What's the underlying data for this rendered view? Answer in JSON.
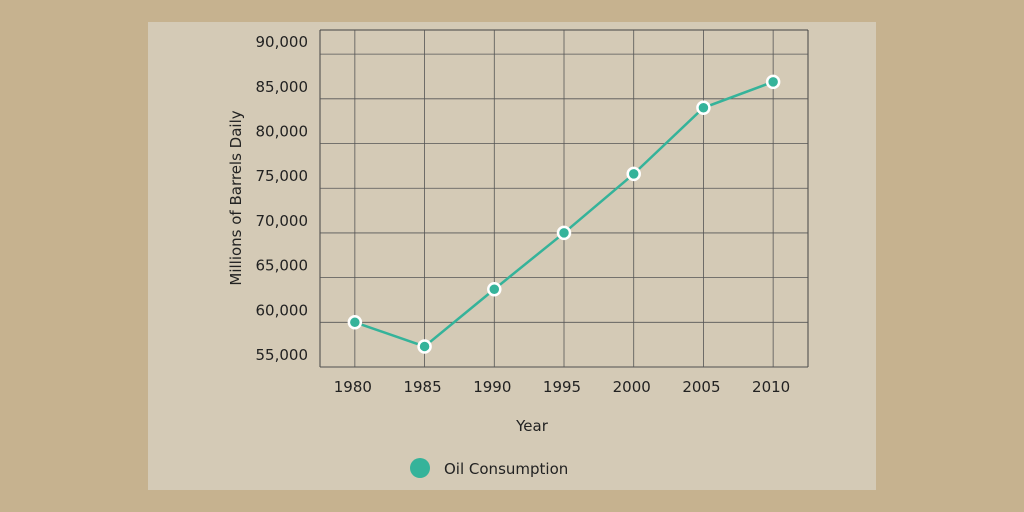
{
  "chart_data": {
    "type": "line",
    "x_label": "Year",
    "y_label": "Millions of Barrels Daily",
    "x": [
      1980,
      1985,
      1990,
      1995,
      2000,
      2005,
      2010
    ],
    "xlim": [
      1977.5,
      2012.5
    ],
    "xticks": [
      1980,
      1985,
      1990,
      1995,
      2000,
      2005,
      2010
    ],
    "ylim": [
      55000,
      92700
    ],
    "yticks": [
      {
        "value": 55000,
        "label": "55,000"
      },
      {
        "value": 60000,
        "label": "60,000"
      },
      {
        "value": 65000,
        "label": "65,000"
      },
      {
        "value": 70000,
        "label": "70,000"
      },
      {
        "value": 75000,
        "label": "75,000"
      },
      {
        "value": 80000,
        "label": "80,000"
      },
      {
        "value": 85000,
        "label": "85,000"
      },
      {
        "value": 90000,
        "label": "90,000"
      }
    ],
    "grid": true,
    "legend": "bottom",
    "series": [
      {
        "name": "Oil Consumption",
        "color": "#35b39a",
        "values": [
          60000,
          57300,
          63700,
          70000,
          76600,
          84000,
          86900
        ]
      }
    ]
  }
}
